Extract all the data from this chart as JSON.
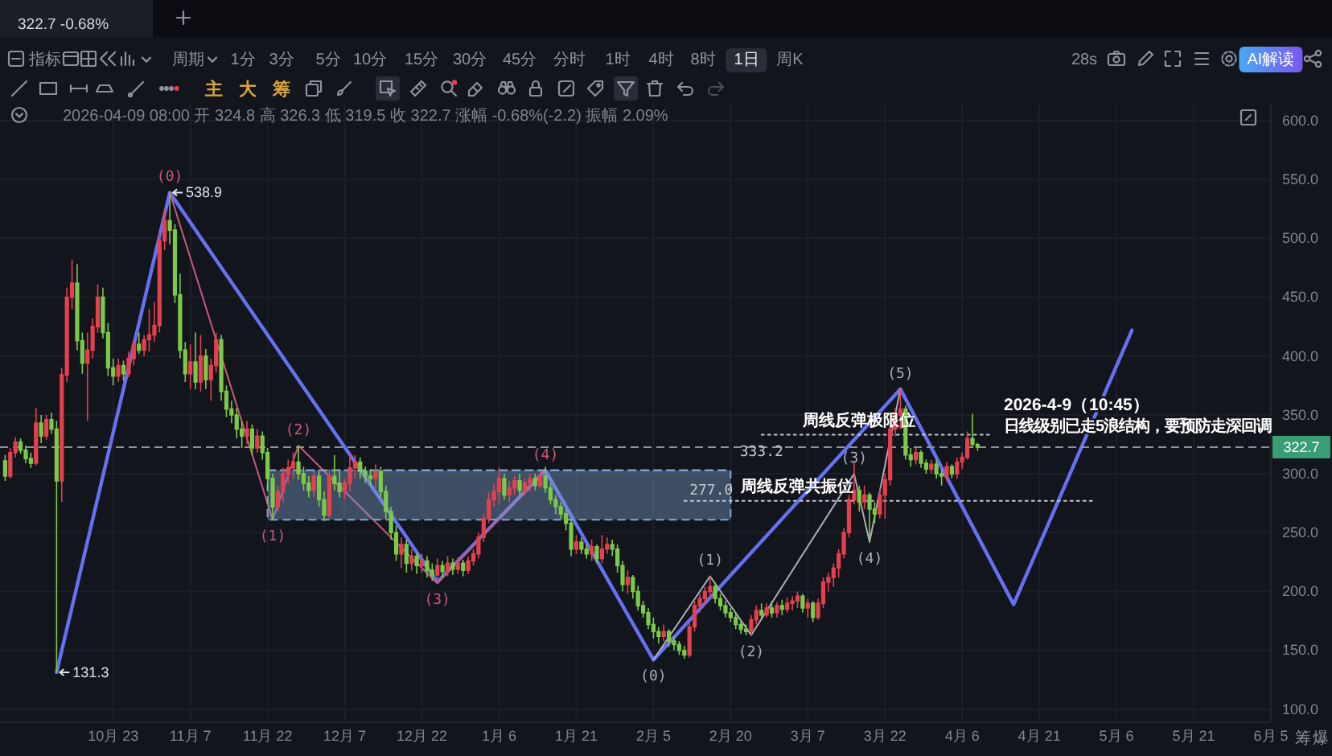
{
  "chart_data": {
    "type": "candlestick",
    "xlim": [
      "2025-10-01",
      "2026-06-05"
    ],
    "xticks": [
      {
        "value": "2025-10-23",
        "label": "10月 23"
      },
      {
        "value": "2025-11-07",
        "label": "11月 7"
      },
      {
        "value": "2025-11-22",
        "label": "11月 22"
      },
      {
        "value": "2025-12-07",
        "label": "12月 7"
      },
      {
        "value": "2025-12-22",
        "label": "12月 22"
      },
      {
        "value": "2026-01-06",
        "label": "1月 6"
      },
      {
        "value": "2026-01-21",
        "label": "1月 21"
      },
      {
        "value": "2026-02-05",
        "label": "2月 5"
      },
      {
        "value": "2026-02-20",
        "label": "2月 20"
      },
      {
        "value": "2026-03-07",
        "label": "3月 7"
      },
      {
        "value": "2026-03-22",
        "label": "3月 22"
      },
      {
        "value": "2026-04-06",
        "label": "4月 6"
      },
      {
        "value": "2026-04-21",
        "label": "4月 21"
      },
      {
        "value": "2026-05-06",
        "label": "5月 6"
      },
      {
        "value": "2026-05-21",
        "label": "5月 21"
      },
      {
        "value": "2026-06-05",
        "label": "6月 5"
      }
    ],
    "ylim": [
      89,
      615
    ],
    "yticks": [
      {
        "value": 100,
        "label": "100.0"
      },
      {
        "value": 150,
        "label": "150.0"
      },
      {
        "value": 200,
        "label": "200.0"
      },
      {
        "value": 250,
        "label": "250.0"
      },
      {
        "value": 300,
        "label": "300.0"
      },
      {
        "value": 350,
        "label": "350.0"
      },
      {
        "value": 400,
        "label": "400.0"
      },
      {
        "value": 450,
        "label": "450.0"
      },
      {
        "value": 500,
        "label": "500.0"
      },
      {
        "value": 550,
        "label": "550.0"
      },
      {
        "value": 600,
        "label": "600.0"
      }
    ],
    "grid": true,
    "series": [
      {
        "type": "candlestick",
        "x": [
          "2025-10-02",
          "2025-10-03",
          "2025-10-04",
          "2025-10-05",
          "2025-10-06",
          "2025-10-07",
          "2025-10-08",
          "2025-10-09",
          "2025-10-10",
          "2025-10-11",
          "2025-10-12",
          "2025-10-13",
          "2025-10-14",
          "2025-10-15",
          "2025-10-16",
          "2025-10-17",
          "2025-10-18",
          "2025-10-19",
          "2025-10-20",
          "2025-10-21",
          "2025-10-22",
          "2025-10-23",
          "2025-10-24",
          "2025-10-25",
          "2025-10-26",
          "2025-10-27",
          "2025-10-28",
          "2025-10-29",
          "2025-10-30",
          "2025-10-31",
          "2025-11-01",
          "2025-11-02",
          "2025-11-03",
          "2025-11-04",
          "2025-11-05",
          "2025-11-06",
          "2025-11-07",
          "2025-11-08",
          "2025-11-09",
          "2025-11-10",
          "2025-11-11",
          "2025-11-12",
          "2025-11-13",
          "2025-11-14",
          "2025-11-15",
          "2025-11-16",
          "2025-11-17",
          "2025-11-18",
          "2025-11-19",
          "2025-11-20",
          "2025-11-21",
          "2025-11-22",
          "2025-11-23",
          "2025-11-24",
          "2025-11-25",
          "2025-11-26",
          "2025-11-27",
          "2025-11-28",
          "2025-11-29",
          "2025-11-30",
          "2025-12-01",
          "2025-12-02",
          "2025-12-03",
          "2025-12-04",
          "2025-12-05",
          "2025-12-06",
          "2025-12-07",
          "2025-12-08",
          "2025-12-09",
          "2025-12-10",
          "2025-12-11",
          "2025-12-12",
          "2025-12-13",
          "2025-12-14",
          "2025-12-15",
          "2025-12-16",
          "2025-12-17",
          "2025-12-18",
          "2025-12-19",
          "2025-12-20",
          "2025-12-21",
          "2025-12-22",
          "2025-12-23",
          "2025-12-24",
          "2025-12-25",
          "2025-12-26",
          "2025-12-27",
          "2025-12-28",
          "2025-12-29",
          "2025-12-30",
          "2025-12-31",
          "2026-01-01",
          "2026-01-02",
          "2026-01-03",
          "2026-01-04",
          "2026-01-05",
          "2026-01-06",
          "2026-01-07",
          "2026-01-08",
          "2026-01-09",
          "2026-01-10",
          "2026-01-11",
          "2026-01-12",
          "2026-01-13",
          "2026-01-14",
          "2026-01-15",
          "2026-01-16",
          "2026-01-17",
          "2026-01-18",
          "2026-01-19",
          "2026-01-20",
          "2026-01-21",
          "2026-01-22",
          "2026-01-23",
          "2026-01-24",
          "2026-01-25",
          "2026-01-26",
          "2026-01-27",
          "2026-01-28",
          "2026-01-29",
          "2026-01-30",
          "2026-01-31",
          "2026-02-01",
          "2026-02-02",
          "2026-02-03",
          "2026-02-04",
          "2026-02-05",
          "2026-02-06",
          "2026-02-07",
          "2026-02-08",
          "2026-02-09",
          "2026-02-10",
          "2026-02-11",
          "2026-02-12",
          "2026-02-13",
          "2026-02-14",
          "2026-02-15",
          "2026-02-16",
          "2026-02-17",
          "2026-02-18",
          "2026-02-19",
          "2026-02-20",
          "2026-02-21",
          "2026-02-22",
          "2026-02-23",
          "2026-02-24",
          "2026-02-25",
          "2026-02-26",
          "2026-02-27",
          "2026-02-28",
          "2026-03-01",
          "2026-03-02",
          "2026-03-03",
          "2026-03-04",
          "2026-03-05",
          "2026-03-06",
          "2026-03-07",
          "2026-03-08",
          "2026-03-09",
          "2026-03-10",
          "2026-03-11",
          "2026-03-12",
          "2026-03-13",
          "2026-03-14",
          "2026-03-15",
          "2026-03-16",
          "2026-03-17",
          "2026-03-18",
          "2026-03-19",
          "2026-03-20",
          "2026-03-21",
          "2026-03-22",
          "2026-03-23",
          "2026-03-24",
          "2026-03-25",
          "2026-03-26",
          "2026-03-27",
          "2026-03-28",
          "2026-03-29",
          "2026-03-30",
          "2026-03-31",
          "2026-04-01",
          "2026-04-02",
          "2026-04-03",
          "2026-04-04",
          "2026-04-05",
          "2026-04-06",
          "2026-04-07",
          "2026-04-08",
          "2026-04-09"
        ],
        "ohlc": [
          [
            311,
            316,
            294,
            298
          ],
          [
            298,
            322,
            296,
            318
          ],
          [
            318,
            331,
            314,
            327
          ],
          [
            327,
            330,
            317,
            320
          ],
          [
            320,
            324,
            309,
            313
          ],
          [
            313,
            318,
            305,
            309
          ],
          [
            309,
            356,
            307,
            343
          ],
          [
            343,
            350,
            326,
            332
          ],
          [
            332,
            350,
            329,
            346
          ],
          [
            346,
            352,
            334,
            338
          ],
          [
            338,
            345,
            131.3,
            294
          ],
          [
            294,
            390,
            276,
            384
          ],
          [
            384,
            458,
            378,
            450
          ],
          [
            450,
            482,
            440,
            462
          ],
          [
            462,
            478,
            405,
            413
          ],
          [
            413,
            420,
            385,
            394
          ],
          [
            394,
            420,
            345,
            405
          ],
          [
            405,
            432,
            398,
            425
          ],
          [
            425,
            461,
            420,
            450
          ],
          [
            450,
            458,
            415,
            420
          ],
          [
            420,
            428,
            383,
            390
          ],
          [
            390,
            398,
            375,
            383
          ],
          [
            383,
            398,
            378,
            392
          ],
          [
            392,
            396,
            379,
            385
          ],
          [
            385,
            404,
            382,
            398
          ],
          [
            398,
            414,
            392,
            410
          ],
          [
            410,
            420,
            402,
            405
          ],
          [
            405,
            418,
            400,
            414
          ],
          [
            414,
            440,
            404,
            418
          ],
          [
            418,
            446,
            412,
            426
          ],
          [
            426,
            505,
            420,
            498
          ],
          [
            498,
            525,
            490,
            515
          ],
          [
            515,
            538.9,
            495,
            507
          ],
          [
            507,
            512,
            445,
            452
          ],
          [
            452,
            470,
            398,
            405
          ],
          [
            405,
            412,
            378,
            385
          ],
          [
            385,
            410,
            372,
            395
          ],
          [
            395,
            420,
            372,
            378
          ],
          [
            378,
            418,
            370,
            400
          ],
          [
            400,
            406,
            372,
            380
          ],
          [
            380,
            398,
            362,
            392
          ],
          [
            392,
            420,
            386,
            414
          ],
          [
            414,
            418,
            362,
            370
          ],
          [
            370,
            375,
            348,
            355
          ],
          [
            355,
            362,
            343,
            350
          ],
          [
            350,
            356,
            330,
            338
          ],
          [
            338,
            345,
            322,
            332
          ],
          [
            332,
            345,
            325,
            338
          ],
          [
            338,
            342,
            316,
            322
          ],
          [
            322,
            338,
            318,
            332
          ],
          [
            332,
            336,
            312,
            318
          ],
          [
            318,
            322,
            286,
            296
          ],
          [
            296,
            300,
            261,
            272
          ],
          [
            272,
            290,
            268,
            285
          ],
          [
            285,
            305,
            276,
            300
          ],
          [
            300,
            312,
            292,
            305
          ],
          [
            305,
            318,
            296,
            310
          ],
          [
            310,
            324,
            295,
            300
          ],
          [
            300,
            306,
            286,
            292
          ],
          [
            292,
            298,
            280,
            286
          ],
          [
            286,
            302,
            280,
            298
          ],
          [
            298,
            302,
            272,
            278
          ],
          [
            278,
            285,
            260,
            265
          ],
          [
            265,
            304,
            262,
            298
          ],
          [
            298,
            316,
            286,
            292
          ],
          [
            292,
            304,
            280,
            285
          ],
          [
            285,
            296,
            278,
            292
          ],
          [
            292,
            317,
            285,
            305
          ],
          [
            305,
            316,
            296,
            310
          ],
          [
            310,
            314,
            296,
            302
          ],
          [
            302,
            306,
            292,
            298
          ],
          [
            298,
            304,
            290,
            296
          ],
          [
            296,
            308,
            288,
            302
          ],
          [
            302,
            306,
            280,
            285
          ],
          [
            285,
            290,
            262,
            268
          ],
          [
            268,
            272,
            244,
            250
          ],
          [
            250,
            256,
            226,
            232
          ],
          [
            232,
            246,
            220,
            240
          ],
          [
            240,
            244,
            216,
            224
          ],
          [
            224,
            236,
            218,
            230
          ],
          [
            230,
            233,
            215,
            222
          ],
          [
            222,
            232,
            216,
            226
          ],
          [
            226,
            230,
            212,
            218
          ],
          [
            218,
            224,
            209,
            214
          ],
          [
            214,
            228,
            207,
            222
          ],
          [
            222,
            226,
            212,
            217
          ],
          [
            217,
            230,
            213,
            224
          ],
          [
            224,
            228,
            214,
            219
          ],
          [
            219,
            229,
            215,
            224
          ],
          [
            224,
            227,
            213,
            218
          ],
          [
            218,
            230,
            215,
            226
          ],
          [
            226,
            236,
            222,
            232
          ],
          [
            232,
            250,
            228,
            246
          ],
          [
            246,
            266,
            242,
            262
          ],
          [
            262,
            284,
            258,
            278
          ],
          [
            278,
            292,
            272,
            285
          ],
          [
            285,
            305,
            274,
            296
          ],
          [
            296,
            300,
            278,
            282
          ],
          [
            282,
            294,
            276,
            288
          ],
          [
            288,
            298,
            282,
            294
          ],
          [
            294,
            300,
            282,
            286
          ],
          [
            286,
            296,
            282,
            292
          ],
          [
            292,
            300,
            285,
            296
          ],
          [
            296,
            300,
            286,
            290
          ],
          [
            290,
            302,
            288,
            298
          ],
          [
            298,
            306,
            284,
            288
          ],
          [
            288,
            292,
            274,
            278
          ],
          [
            278,
            282,
            266,
            272
          ],
          [
            272,
            276,
            262,
            266
          ],
          [
            266,
            270,
            252,
            258
          ],
          [
            258,
            262,
            230,
            236
          ],
          [
            236,
            248,
            232,
            242
          ],
          [
            242,
            246,
            232,
            236
          ],
          [
            236,
            240,
            228,
            232
          ],
          [
            232,
            244,
            226,
            238
          ],
          [
            238,
            240,
            224,
            228
          ],
          [
            228,
            248,
            224,
            236
          ],
          [
            236,
            246,
            232,
            240
          ],
          [
            240,
            244,
            230,
            236
          ],
          [
            236,
            240,
            216,
            222
          ],
          [
            222,
            226,
            200,
            206
          ],
          [
            206,
            218,
            198,
            212
          ],
          [
            212,
            214,
            194,
            200
          ],
          [
            200,
            205,
            184,
            188
          ],
          [
            188,
            192,
            178,
            182
          ],
          [
            182,
            186,
            168,
            172
          ],
          [
            172,
            178,
            160,
            166
          ],
          [
            166,
            170,
            156,
            162
          ],
          [
            162,
            172,
            158,
            166
          ],
          [
            166,
            168,
            153,
            158
          ],
          [
            158,
            162,
            150,
            155
          ],
          [
            155,
            158,
            146,
            150
          ],
          [
            150,
            154,
            143,
            146
          ],
          [
            146,
            174,
            144,
            170
          ],
          [
            170,
            192,
            166,
            188
          ],
          [
            188,
            198,
            182,
            194
          ],
          [
            194,
            204,
            188,
            200
          ],
          [
            200,
            213,
            194,
            204
          ],
          [
            204,
            208,
            190,
            194
          ],
          [
            194,
            198,
            184,
            188
          ],
          [
            188,
            192,
            178,
            182
          ],
          [
            182,
            186,
            174,
            178
          ],
          [
            178,
            182,
            168,
            172
          ],
          [
            172,
            176,
            164,
            168
          ],
          [
            168,
            172,
            163,
            166
          ],
          [
            166,
            180,
            163,
            176
          ],
          [
            176,
            188,
            172,
            184
          ],
          [
            184,
            190,
            176,
            180
          ],
          [
            180,
            190,
            178,
            186
          ],
          [
            186,
            192,
            178,
            182
          ],
          [
            182,
            191,
            178,
            188
          ],
          [
            188,
            193,
            180,
            185
          ],
          [
            185,
            195,
            182,
            190
          ],
          [
            190,
            196,
            184,
            192
          ],
          [
            192,
            200,
            186,
            196
          ],
          [
            196,
            198,
            182,
            186
          ],
          [
            186,
            194,
            178,
            190
          ],
          [
            190,
            192,
            174,
            178
          ],
          [
            178,
            194,
            176,
            190
          ],
          [
            190,
            212,
            186,
            208
          ],
          [
            208,
            216,
            200,
            212
          ],
          [
            212,
            224,
            204,
            220
          ],
          [
            220,
            236,
            212,
            232
          ],
          [
            232,
            254,
            228,
            250
          ],
          [
            250,
            282,
            246,
            278
          ],
          [
            278,
            310,
            274,
            286
          ],
          [
            286,
            290,
            268,
            276
          ],
          [
            276,
            290,
            270,
            282
          ],
          [
            282,
            284,
            242,
            270
          ],
          [
            270,
            276,
            258,
            266
          ],
          [
            266,
            288,
            262,
            282
          ],
          [
            282,
            300,
            262,
            295
          ],
          [
            295,
            342,
            290,
            338
          ],
          [
            338,
            356,
            332,
            350
          ],
          [
            350,
            372,
            338,
            355
          ],
          [
            355,
            358,
            312,
            316
          ],
          [
            316,
            322,
            306,
            312
          ],
          [
            312,
            322,
            308,
            318
          ],
          [
            318,
            320,
            305,
            309
          ],
          [
            309,
            312,
            300,
            304
          ],
          [
            304,
            312,
            300,
            308
          ],
          [
            308,
            312,
            296,
            300
          ],
          [
            300,
            304,
            290,
            298
          ],
          [
            298,
            310,
            294,
            306
          ],
          [
            306,
            308,
            296,
            300
          ],
          [
            300,
            314,
            296,
            310
          ],
          [
            310,
            318,
            304,
            314
          ],
          [
            314,
            336,
            312,
            330
          ],
          [
            330,
            351,
            322,
            325
          ],
          [
            324.8,
            326.3,
            319.5,
            322.7
          ]
        ],
        "colors": [
          "#7dc94a",
          "#e5404f",
          "#e5404f",
          "#7dc94a",
          "#7dc94a",
          "#7dc94a",
          "#e5404f",
          "#7dc94a",
          "#e5404f",
          "#7dc94a",
          "#7dc94a",
          "#e5404f",
          "#e5404f",
          "#e5404f",
          "#7dc94a",
          "#7dc94a",
          "#e5404f",
          "#e5404f",
          "#e5404f",
          "#7dc94a",
          "#7dc94a",
          "#7dc94a",
          "#e5404f",
          "#7dc94a",
          "#e5404f",
          "#e5404f",
          "#7dc94a",
          "#e5404f",
          "#e5404f",
          "#e5404f",
          "#e5404f",
          "#e5404f",
          "#7dc94a",
          "#7dc94a",
          "#7dc94a",
          "#7dc94a",
          "#e5404f",
          "#7dc94a",
          "#e5404f",
          "#7dc94a",
          "#e5404f",
          "#e5404f",
          "#7dc94a",
          "#7dc94a",
          "#7dc94a",
          "#7dc94a",
          "#7dc94a",
          "#e5404f",
          "#7dc94a",
          "#e5404f",
          "#7dc94a",
          "#7dc94a",
          "#7dc94a",
          "#e5404f",
          "#e5404f",
          "#e5404f",
          "#e5404f",
          "#7dc94a",
          "#7dc94a",
          "#7dc94a",
          "#e5404f",
          "#7dc94a",
          "#7dc94a",
          "#e5404f",
          "#7dc94a",
          "#7dc94a",
          "#e5404f",
          "#e5404f",
          "#e5404f",
          "#7dc94a",
          "#7dc94a",
          "#7dc94a",
          "#e5404f",
          "#7dc94a",
          "#7dc94a",
          "#7dc94a",
          "#7dc94a",
          "#e5404f",
          "#7dc94a",
          "#e5404f",
          "#7dc94a",
          "#e5404f",
          "#7dc94a",
          "#7dc94a",
          "#e5404f",
          "#7dc94a",
          "#e5404f",
          "#7dc94a",
          "#e5404f",
          "#7dc94a",
          "#e5404f",
          "#e5404f",
          "#e5404f",
          "#e5404f",
          "#e5404f",
          "#e5404f",
          "#e5404f",
          "#7dc94a",
          "#e5404f",
          "#e5404f",
          "#7dc94a",
          "#e5404f",
          "#e5404f",
          "#7dc94a",
          "#e5404f",
          "#7dc94a",
          "#7dc94a",
          "#7dc94a",
          "#7dc94a",
          "#7dc94a",
          "#7dc94a",
          "#e5404f",
          "#7dc94a",
          "#7dc94a",
          "#e5404f",
          "#7dc94a",
          "#e5404f",
          "#e5404f",
          "#7dc94a",
          "#7dc94a",
          "#7dc94a",
          "#e5404f",
          "#7dc94a",
          "#7dc94a",
          "#7dc94a",
          "#7dc94a",
          "#7dc94a",
          "#7dc94a",
          "#e5404f",
          "#7dc94a",
          "#7dc94a",
          "#7dc94a",
          "#7dc94a",
          "#e5404f",
          "#e5404f",
          "#e5404f",
          "#e5404f",
          "#e5404f",
          "#7dc94a",
          "#7dc94a",
          "#7dc94a",
          "#7dc94a",
          "#7dc94a",
          "#7dc94a",
          "#7dc94a",
          "#e5404f",
          "#e5404f",
          "#7dc94a",
          "#e5404f",
          "#7dc94a",
          "#e5404f",
          "#7dc94a",
          "#e5404f",
          "#e5404f",
          "#e5404f",
          "#7dc94a",
          "#e5404f",
          "#7dc94a",
          "#e5404f",
          "#e5404f",
          "#e5404f",
          "#e5404f",
          "#e5404f",
          "#e5404f",
          "#e5404f",
          "#e5404f",
          "#7dc94a",
          "#e5404f",
          "#7dc94a",
          "#7dc94a",
          "#e5404f",
          "#e5404f",
          "#e5404f",
          "#e5404f",
          "#e5404f",
          "#7dc94a",
          "#7dc94a",
          "#e5404f",
          "#7dc94a",
          "#7dc94a",
          "#e5404f",
          "#7dc94a",
          "#7dc94a",
          "#e5404f",
          "#7dc94a",
          "#e5404f",
          "#e5404f",
          "#e5404f",
          "#7dc94a",
          "#7dc94a"
        ]
      },
      {
        "type": "line",
        "color": "#6571f2",
        "x": [
          "2025-10-12",
          "2025-11-03",
          "2025-12-25",
          "2026-01-15",
          "2026-02-05",
          "2026-03-25",
          "2026-04-16",
          "2026-05-09"
        ],
        "values": [
          131.3,
          538.9,
          208,
          303,
          142,
          372,
          189,
          422
        ],
        "value_labels": [
          "131.3",
          "538.9",
          null,
          null,
          null,
          null,
          null,
          null
        ]
      },
      {
        "type": "line",
        "color": "#c8587a",
        "x": [
          "2025-11-03",
          "2025-11-23",
          "2025-11-28",
          "2025-12-25",
          "2026-01-15"
        ],
        "values": [
          538.9,
          261,
          324,
          207,
          303
        ]
      },
      {
        "type": "line",
        "color": "#a9adb9",
        "x": [
          "2026-02-05",
          "2026-02-16",
          "2026-02-24",
          "2026-03-16",
          "2026-03-19",
          "2026-03-25"
        ],
        "values": [
          142,
          213,
          163,
          300,
          242,
          372
        ]
      },
      {
        "type": "line",
        "color": "#7ea6d3",
        "line_style": "dashed",
        "x": [
          "2025-11-22",
          "2026-02-20"
        ],
        "values": [
          303,
          303
        ],
        "lower": [
          261,
          261
        ],
        "upper": [
          303,
          303
        ]
      },
      {
        "type": "line",
        "color": "#c3c7d0",
        "line_style": "dotted",
        "x": [
          "2026-02-26",
          "2026-04-12"
        ],
        "values": [
          333.2,
          333.2
        ]
      },
      {
        "type": "line",
        "color": "#c3c7d0",
        "line_style": "dotted",
        "x": [
          "2026-02-11",
          "2026-05-02"
        ],
        "values": [
          277,
          277
        ]
      }
    ],
    "ref_lines": [
      {
        "axis": "y",
        "value": 322.7,
        "label": "322.7",
        "color": "#8e929c",
        "line_style": "dashed"
      }
    ],
    "annotations": [
      "322.7 -0.68%",
      "指标",
      "周期",
      "1分",
      "3分",
      "5分",
      "10分",
      "15分",
      "30分",
      "45分",
      "分时",
      "1时",
      "4时",
      "8时",
      "1日",
      "周K",
      "28s",
      "AI解读",
      "主",
      "大",
      "筹",
      "2026-04-09 08:00 开 324.8 高 326.3 低 319.5 收 322.7 涨幅 -0.68%(-2.2) 振幅 2.09%",
      "2026-4-9（10:45）",
      "日线级别已走5浪结构，要预防走深回调",
      "筹",
      "爆",
      {
        "text": "(0)",
        "x": "2025-11-03",
        "y": 538.9
      },
      {
        "text": "(1)",
        "x": "2025-11-23",
        "y": 261
      },
      {
        "text": "(2)",
        "x": "2025-11-28",
        "y": 324
      },
      {
        "text": "(3)",
        "x": "2025-12-25",
        "y": 207
      },
      {
        "text": "(4)",
        "x": "2026-01-15",
        "y": 303
      },
      {
        "text": "(0)",
        "x": "2026-02-05",
        "y": 142
      },
      {
        "text": "(1)",
        "x": "2026-02-16",
        "y": 213
      },
      {
        "text": "(2)",
        "x": "2026-02-24",
        "y": 163
      },
      {
        "text": "(3)",
        "x": "2026-03-16",
        "y": 300
      },
      {
        "text": "(4)",
        "x": "2026-03-19",
        "y": 242
      },
      {
        "text": "(5)",
        "x": "2026-03-25",
        "y": 372
      },
      {
        "text": "333.2",
        "x": "2026-02-26",
        "y": 333.2
      },
      {
        "text": "周线反弹极限位",
        "x": "2026-03-06",
        "y": 333.2
      },
      {
        "text": "277.0",
        "x": "2026-02-12",
        "y": 277
      },
      {
        "text": "周线反弹共振位",
        "x": "2026-02-22",
        "y": 277
      }
    ]
  }
}
